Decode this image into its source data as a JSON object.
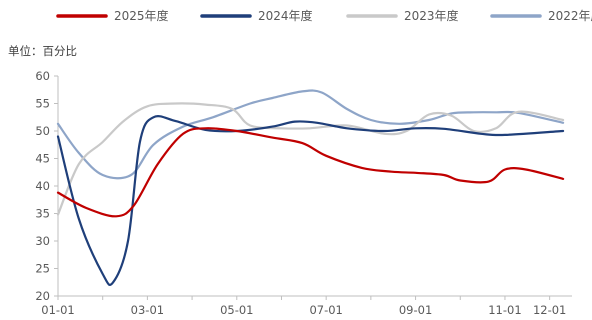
{
  "chart_data": {
    "type": "line",
    "unit_label": "单位：百分比",
    "x": [
      "01-01",
      "02-01",
      "03-01",
      "04-01",
      "05-01",
      "06-01",
      "07-01",
      "08-01",
      "09-01",
      "10-01",
      "11-01",
      "12-01"
    ],
    "x_tick_labels": [
      "01-01",
      "03-01",
      "05-01",
      "07-01",
      "09-01",
      "11-01",
      "12-01"
    ],
    "y_tick_labels": [
      "20",
      "25",
      "30",
      "35",
      "40",
      "45",
      "50",
      "55",
      "60"
    ],
    "ylim": [
      20,
      60
    ],
    "grid": false,
    "legend_position": "top",
    "series": [
      {
        "name": "2025年度",
        "color": "#c00000",
        "x": [
          "01-01",
          "01-20",
          "02-10",
          "02-22",
          "03-08",
          "03-25",
          "04-10",
          "05-01",
          "05-25",
          "06-15",
          "07-01",
          "07-25",
          "08-15",
          "09-01",
          "09-20",
          "10-01",
          "10-20",
          "11-01",
          "11-15",
          "12-10"
        ],
        "values": [
          38.8,
          36.0,
          34.5,
          36.5,
          44.0,
          49.5,
          50.5,
          50.0,
          48.8,
          47.8,
          45.5,
          43.3,
          42.6,
          42.4,
          42.0,
          41.0,
          40.8,
          43.0,
          43.0,
          41.3
        ]
      },
      {
        "name": "2024年度",
        "color": "#1f3f7a",
        "x": [
          "01-01",
          "01-15",
          "02-01",
          "02-08",
          "02-18",
          "02-26",
          "03-05",
          "03-20",
          "04-10",
          "05-01",
          "05-25",
          "06-10",
          "06-25",
          "07-15",
          "08-10",
          "09-01",
          "09-20",
          "10-15",
          "11-01",
          "12-10"
        ],
        "values": [
          49.0,
          34.0,
          24.0,
          22.5,
          30.0,
          48.0,
          52.5,
          51.8,
          50.2,
          50.0,
          50.8,
          51.7,
          51.5,
          50.5,
          50.0,
          50.5,
          50.4,
          49.5,
          49.3,
          50.0
        ]
      },
      {
        "name": "2023年度",
        "color": "#c9c9c9",
        "x": [
          "01-01",
          "01-15",
          "02-01",
          "02-15",
          "03-01",
          "03-20",
          "04-10",
          "04-28",
          "05-10",
          "06-01",
          "06-20",
          "07-15",
          "08-10",
          "08-25",
          "09-10",
          "09-25",
          "10-10",
          "10-25",
          "11-10",
          "12-10"
        ],
        "values": [
          34.8,
          44.0,
          48.0,
          51.8,
          54.5,
          55.0,
          54.8,
          54.0,
          51.0,
          50.5,
          50.5,
          51.0,
          49.5,
          50.0,
          53.0,
          52.8,
          50.0,
          50.5,
          53.5,
          52.0
        ]
      },
      {
        "name": "2022年度",
        "color": "#8ea5c8",
        "x": [
          "01-01",
          "01-15",
          "02-01",
          "02-20",
          "03-05",
          "03-25",
          "04-15",
          "05-10",
          "05-25",
          "06-15",
          "06-28",
          "07-15",
          "08-01",
          "08-20",
          "09-10",
          "09-25",
          "10-10",
          "10-25",
          "11-10",
          "12-10"
        ],
        "values": [
          51.3,
          46.0,
          42.0,
          42.0,
          47.5,
          50.8,
          52.5,
          55.0,
          56.0,
          57.2,
          57.0,
          54.0,
          52.0,
          51.3,
          52.0,
          53.2,
          53.4,
          53.4,
          53.3,
          51.5
        ]
      }
    ]
  }
}
